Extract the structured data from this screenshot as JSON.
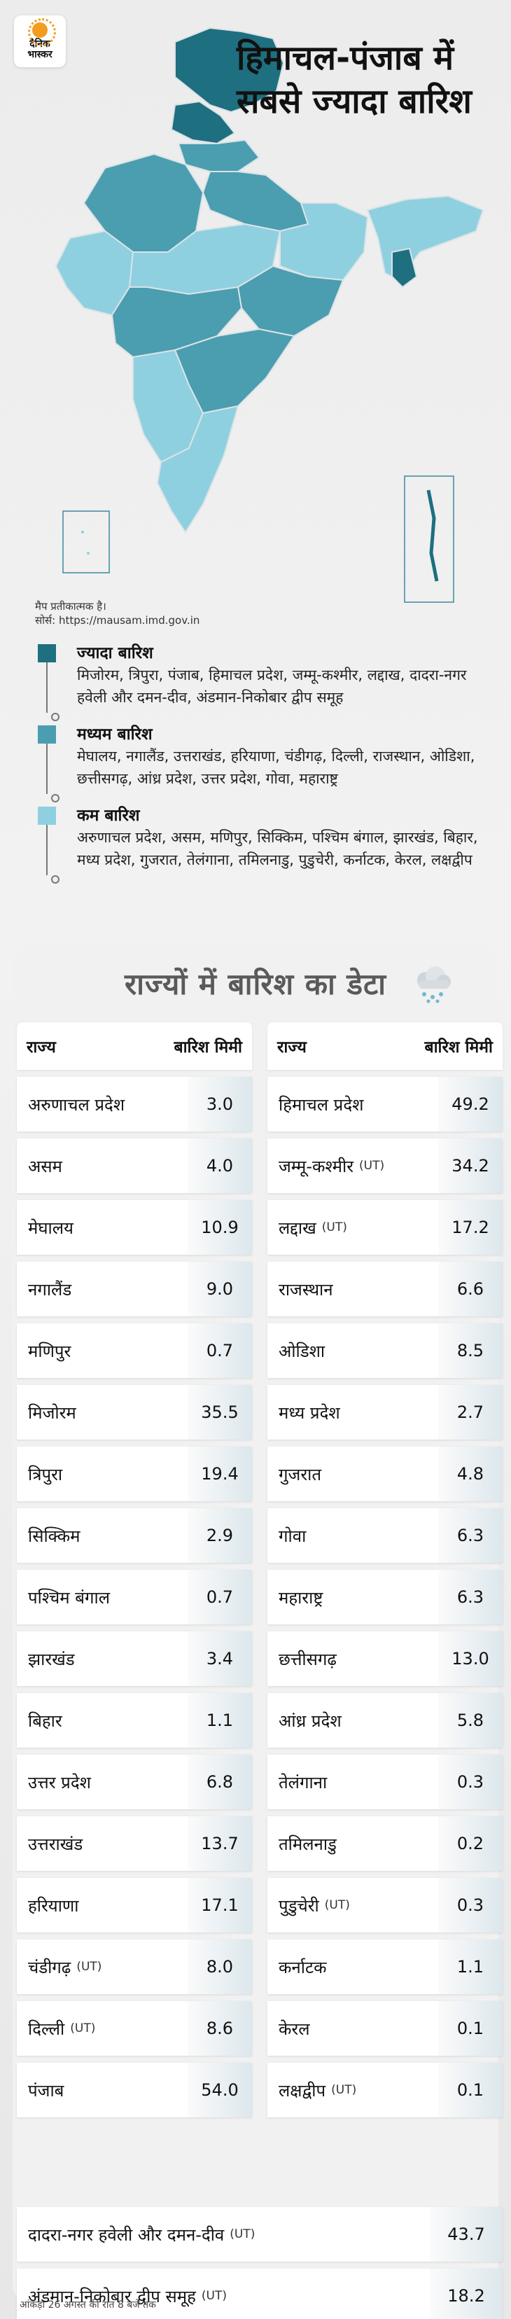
{
  "brand": {
    "line1": "दैनिक",
    "line2": "भास्कर"
  },
  "headline": "हिमाचल-पंजाब में सबसे ज्यादा बारिश",
  "map_note": {
    "line1": "मैप प्रतीकात्मक है।",
    "line2": "सोर्स: https://mausam.imd.gov.in"
  },
  "colors": {
    "high": "#1e6f80",
    "medium": "#4b9db0",
    "low": "#8fd0e0",
    "map_outline": "#d9e3e6"
  },
  "legend": [
    {
      "title": "ज्यादा बारिश",
      "states": "मिजोरम, त्रिपुरा, पंजाब, हिमाचल प्रदेश, जम्मू-कश्मीर, लद्दाख, दादरा-नगर हवेली और दमन-दीव, अंडमान-निकोबार द्वीप समूह"
    },
    {
      "title": "मध्यम बारिश",
      "states": "मेघालय, नगालैंड, उत्तराखंड, हरियाणा, चंडीगढ़, दिल्ली, राजस्थान, ओडिशा, छत्तीसगढ़, आंध्र प्रदेश, उत्तर प्रदेश, गोवा, महाराष्ट्र"
    },
    {
      "title": "कम बारिश",
      "states": "अरुणाचल प्रदेश, असम, मणिपुर, सिक्किम, पश्चिम बंगाल, झारखंड, बिहार, मध्य प्रदेश, गुजरात, तेलंगाना, तमिलनाडु, पुडुचेरी, कर्नाटक, केरल, लक्षद्वीप"
    }
  ],
  "table": {
    "heading": "राज्यों में बारिश का डेटा",
    "col_state": "राज्य",
    "col_rain": "बारिश मिमी",
    "ut_tag": "(UT)",
    "left": [
      {
        "state": "अरुणाचल प्रदेश",
        "value": "3.0",
        "ut": false
      },
      {
        "state": "असम",
        "value": "4.0",
        "ut": false
      },
      {
        "state": "मेघालय",
        "value": "10.9",
        "ut": false
      },
      {
        "state": "नगालैंड",
        "value": "9.0",
        "ut": false
      },
      {
        "state": "मणिपुर",
        "value": "0.7",
        "ut": false
      },
      {
        "state": "मिजोरम",
        "value": "35.5",
        "ut": false
      },
      {
        "state": "त्रिपुरा",
        "value": "19.4",
        "ut": false
      },
      {
        "state": "सिक्किम",
        "value": "2.9",
        "ut": false
      },
      {
        "state": "पश्चिम बंगाल",
        "value": "0.7",
        "ut": false
      },
      {
        "state": "झारखंड",
        "value": "3.4",
        "ut": false
      },
      {
        "state": "बिहार",
        "value": "1.1",
        "ut": false
      },
      {
        "state": "उत्तर प्रदेश",
        "value": "6.8",
        "ut": false
      },
      {
        "state": "उत्तराखंड",
        "value": "13.7",
        "ut": false
      },
      {
        "state": "हरियाणा",
        "value": "17.1",
        "ut": false
      },
      {
        "state": "चंडीगढ़",
        "value": "8.0",
        "ut": true
      },
      {
        "state": "दिल्ली",
        "value": "8.6",
        "ut": true
      },
      {
        "state": "पंजाब",
        "value": "54.0",
        "ut": false
      }
    ],
    "right": [
      {
        "state": "हिमाचल प्रदेश",
        "value": "49.2",
        "ut": false
      },
      {
        "state": "जम्मू-कश्मीर",
        "value": "34.2",
        "ut": true
      },
      {
        "state": "लद्दाख",
        "value": "17.2",
        "ut": true
      },
      {
        "state": "राजस्थान",
        "value": "6.6",
        "ut": false
      },
      {
        "state": "ओडिशा",
        "value": "8.5",
        "ut": false
      },
      {
        "state": "मध्य प्रदेश",
        "value": "2.7",
        "ut": false
      },
      {
        "state": "गुजरात",
        "value": "4.8",
        "ut": false
      },
      {
        "state": "गोवा",
        "value": "6.3",
        "ut": false
      },
      {
        "state": "महाराष्ट्र",
        "value": "6.3",
        "ut": false
      },
      {
        "state": "छत्तीसगढ़",
        "value": "13.0",
        "ut": false
      },
      {
        "state": "आंध्र प्रदेश",
        "value": "5.8",
        "ut": false
      },
      {
        "state": "तेलंगाना",
        "value": "0.3",
        "ut": false
      },
      {
        "state": "तमिलनाडु",
        "value": "0.2",
        "ut": false
      },
      {
        "state": "पुडुचेरी",
        "value": "0.3",
        "ut": true
      },
      {
        "state": "कर्नाटक",
        "value": "1.1",
        "ut": false
      },
      {
        "state": "केरल",
        "value": "0.1",
        "ut": false
      },
      {
        "state": "लक्षद्वीप",
        "value": "0.1",
        "ut": true
      }
    ],
    "wide": [
      {
        "state": "दादरा-नगर हवेली और दमन-दीव",
        "value": "43.7",
        "ut": true
      },
      {
        "state": "अंडमान-निकोबार द्वीप समूह",
        "value": "18.2",
        "ut": true
      }
    ]
  },
  "footnote": "आंकड़ा 26 अगस्त की रात 8 बजे तक"
}
